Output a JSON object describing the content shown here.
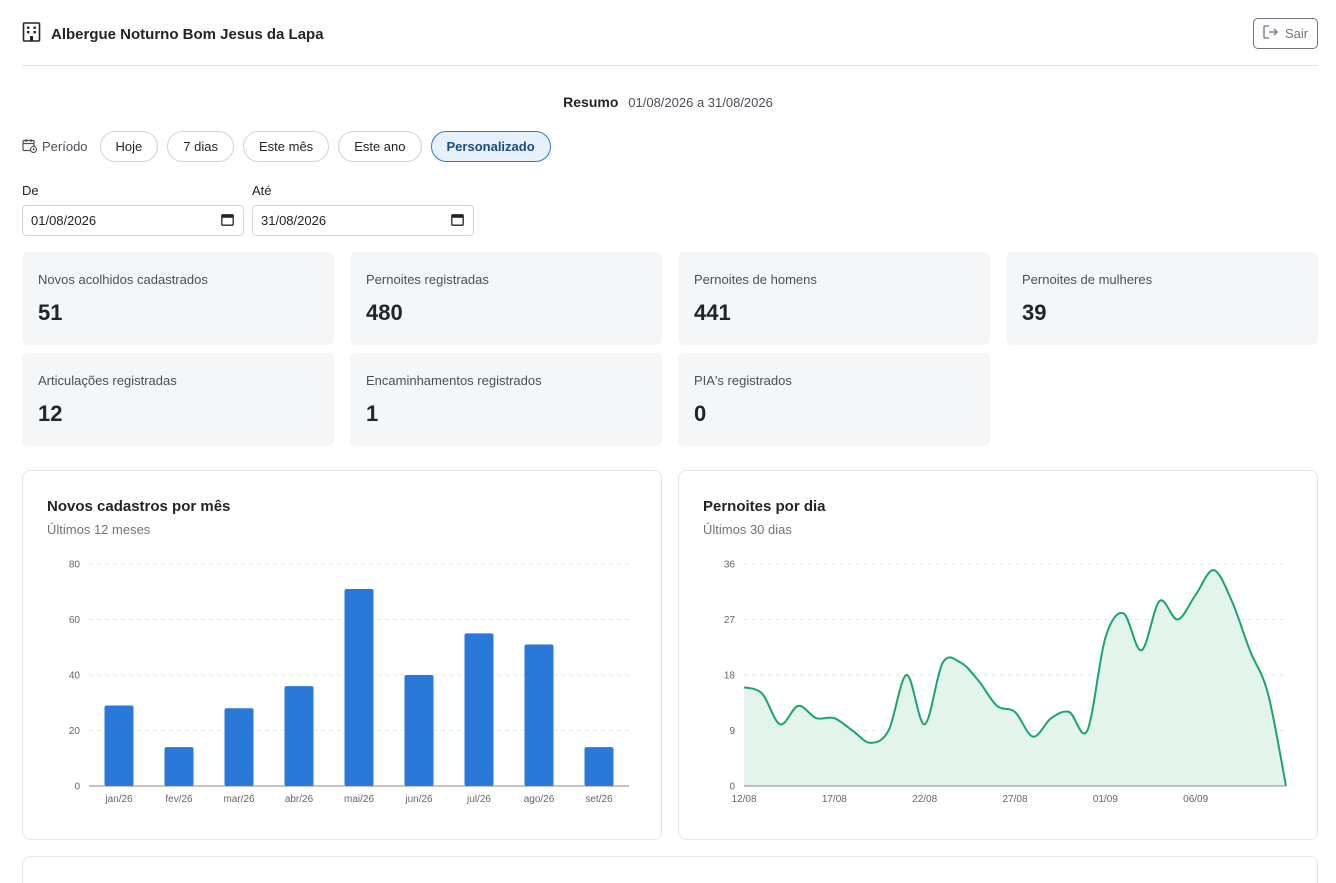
{
  "app": {
    "title": "Albergue Noturno Bom Jesus da Lapa",
    "logout_label": "Sair"
  },
  "summary": {
    "label": "Resumo",
    "range": "01/08/2026 a 31/08/2026"
  },
  "period": {
    "label": "Período",
    "options": [
      "Hoje",
      "7 dias",
      "Este mês",
      "Este ano",
      "Personalizado"
    ],
    "selected": "Personalizado"
  },
  "dates": {
    "from_label": "De",
    "from_value": "01/08/2026",
    "to_label": "Até",
    "to_value": "31/08/2026"
  },
  "kpis": [
    {
      "title": "Novos acolhidos cadastrados",
      "value": "51"
    },
    {
      "title": "Pernoites registradas",
      "value": "480"
    },
    {
      "title": "Pernoites de homens",
      "value": "441"
    },
    {
      "title": "Pernoites de mulheres",
      "value": "39"
    },
    {
      "title": "Articulações registradas",
      "value": "12"
    },
    {
      "title": "Encaminhamentos registrados",
      "value": "1"
    },
    {
      "title": "PIA's registrados",
      "value": "0"
    }
  ],
  "colors": {
    "bar": "#2a78d8",
    "line": "#1aa56d",
    "area": "#e2f4ec",
    "accent": "#2a7ad8"
  },
  "charts": {
    "monthly": {
      "title": "Novos cadastros por mês",
      "subtitle": "Últimos 12 meses"
    },
    "daily": {
      "title": "Pernoites por dia",
      "subtitle": "Últimos 30 dias"
    }
  },
  "chart_data": [
    {
      "type": "bar",
      "title": "Novos cadastros por mês",
      "subtitle": "Últimos 12 meses",
      "categories": [
        "jan/26",
        "fev/26",
        "mar/26",
        "abr/26",
        "mai/26",
        "jun/26",
        "jul/26",
        "ago/26",
        "set/26"
      ],
      "values": [
        29,
        14,
        28,
        36,
        71,
        40,
        55,
        51,
        14
      ],
      "ylim": [
        0,
        80
      ],
      "yticks": [
        0,
        20,
        40,
        60,
        80
      ],
      "grid": true
    },
    {
      "type": "area",
      "title": "Pernoites por dia",
      "subtitle": "Últimos 30 dias",
      "x": [
        "12/08",
        "13/08",
        "14/08",
        "15/08",
        "16/08",
        "17/08",
        "18/08",
        "19/08",
        "20/08",
        "21/08",
        "22/08",
        "23/08",
        "24/08",
        "25/08",
        "26/08",
        "27/08",
        "28/08",
        "29/08",
        "30/08",
        "31/08",
        "01/09",
        "02/09",
        "03/09",
        "04/09",
        "05/09",
        "06/09",
        "07/09",
        "08/09",
        "09/09",
        "10/09",
        "11/09"
      ],
      "values": [
        16,
        15,
        10,
        13,
        11,
        11,
        9,
        7,
        9,
        18,
        10,
        20,
        20,
        17,
        13,
        12,
        8,
        11,
        12,
        9,
        24,
        28,
        22,
        30,
        27,
        31,
        35,
        30,
        22,
        15,
        0
      ],
      "xtick_labels": [
        "12/08",
        "17/08",
        "22/08",
        "27/08",
        "01/09",
        "06/09"
      ],
      "ylim": [
        0,
        36
      ],
      "yticks": [
        0,
        9,
        18,
        27,
        36
      ],
      "grid": true
    }
  ]
}
